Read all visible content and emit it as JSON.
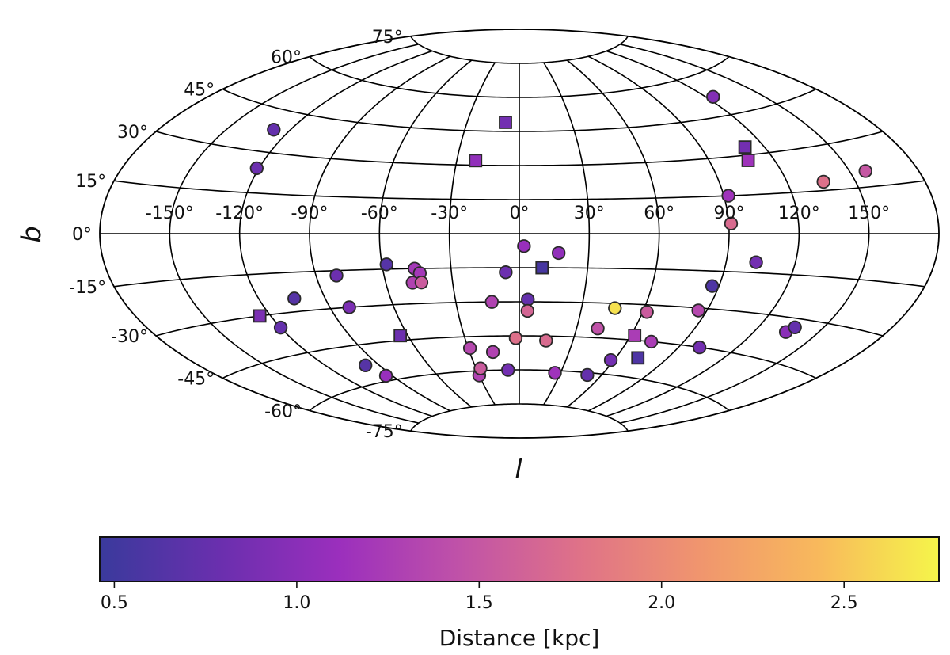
{
  "chart_data": {
    "type": "scatter",
    "projection": "aitoff",
    "xlabel": "l",
    "ylabel": "b",
    "lon_ticks": [
      -150,
      -120,
      -90,
      -60,
      -30,
      0,
      30,
      60,
      90,
      120,
      150
    ],
    "lon_tick_labels": [
      "-150°",
      "-120°",
      "-90°",
      "-60°",
      "-30°",
      "0°",
      "30°",
      "60°",
      "90°",
      "120°",
      "150°"
    ],
    "lat_ticks": [
      -75,
      -60,
      -45,
      -30,
      -15,
      0,
      15,
      30,
      45,
      60,
      75
    ],
    "lat_tick_labels": [
      "-75°",
      "-60°",
      "-45°",
      "-30°",
      "-15°",
      "0°",
      "15°",
      "30°",
      "45°",
      "60°",
      "75°"
    ],
    "grid": true,
    "colormap": "plasma",
    "colormap_stops": [
      "#3a3a9c",
      "#6a2fae",
      "#9b2fbd",
      "#c052a8",
      "#df7288",
      "#f0956e",
      "#f8b95c",
      "#f5f54a"
    ],
    "colorbar": {
      "label": "Distance [kpc]",
      "range": [
        0.46,
        2.76
      ],
      "ticks": [
        0.5,
        1.0,
        1.5,
        2.0,
        2.5
      ],
      "tick_labels": [
        "0.5",
        "1.0",
        "1.5",
        "2.0",
        "2.5"
      ],
      "orientation": "horizontal",
      "placement": "bottom"
    },
    "series": [
      {
        "marker": "circle",
        "points": [
          {
            "l": -128,
            "b": 38,
            "d": 0.75
          },
          {
            "l": -121,
            "b": 24,
            "d": 0.8
          },
          {
            "l": 124,
            "b": 52,
            "d": 0.95
          },
          {
            "l": 136,
            "b": 18,
            "d": 1.75
          },
          {
            "l": 92,
            "b": 15,
            "d": 1.15
          },
          {
            "l": 157,
            "b": 20,
            "d": 1.5
          },
          {
            "l": 91,
            "b": 4,
            "d": 1.7
          },
          {
            "l": 2,
            "b": -5.5,
            "d": 1.1
          },
          {
            "l": 17,
            "b": -8.5,
            "d": 1.05
          },
          {
            "l": 103,
            "b": -11,
            "d": 0.85
          },
          {
            "l": -6,
            "b": -17,
            "d": 0.8
          },
          {
            "l": -58,
            "b": -13,
            "d": 0.65
          },
          {
            "l": -81,
            "b": -17,
            "d": 0.8
          },
          {
            "l": -46,
            "b": -15,
            "d": 1.2
          },
          {
            "l": -44,
            "b": -17,
            "d": 1.2
          },
          {
            "l": -48,
            "b": -21,
            "d": 1.3
          },
          {
            "l": -44,
            "b": -21,
            "d": 1.55
          },
          {
            "l": 87,
            "b": -21,
            "d": 0.6
          },
          {
            "l": -120,
            "b": -35,
            "d": 0.75
          },
          {
            "l": -104,
            "b": -25,
            "d": 0.65
          },
          {
            "l": -81,
            "b": -30,
            "d": 0.9
          },
          {
            "l": -13,
            "b": -30,
            "d": 1.3
          },
          {
            "l": 4,
            "b": -29,
            "d": 0.75
          },
          {
            "l": 4,
            "b": -34,
            "d": 1.65
          },
          {
            "l": 46,
            "b": -32,
            "d": 2.65
          },
          {
            "l": 62,
            "b": -33,
            "d": 1.55
          },
          {
            "l": 86,
            "b": -31,
            "d": 1.35
          },
          {
            "l": 135,
            "b": -35,
            "d": 1.0
          },
          {
            "l": 137,
            "b": -33,
            "d": 0.75
          },
          {
            "l": 41,
            "b": -41,
            "d": 1.45
          },
          {
            "l": 73,
            "b": -45,
            "d": 1.25
          },
          {
            "l": 101,
            "b": -45,
            "d": 0.85
          },
          {
            "l": -2,
            "b": -46,
            "d": 1.75
          },
          {
            "l": 15,
            "b": -47,
            "d": 1.7
          },
          {
            "l": -29,
            "b": -50,
            "d": 1.35
          },
          {
            "l": -16,
            "b": -52,
            "d": 1.3
          },
          {
            "l": -98,
            "b": -53,
            "d": 0.65
          },
          {
            "l": -94,
            "b": -58,
            "d": 1.1
          },
          {
            "l": -30,
            "b": -62,
            "d": 1.3
          },
          {
            "l": -27,
            "b": -59,
            "d": 1.55
          },
          {
            "l": -8,
            "b": -60,
            "d": 0.85
          },
          {
            "l": 26,
            "b": -61,
            "d": 1.15
          },
          {
            "l": 58,
            "b": -54,
            "d": 0.85
          },
          {
            "l": 50,
            "b": -61,
            "d": 0.75
          }
        ]
      },
      {
        "marker": "square",
        "points": [
          {
            "l": -8,
            "b": 49,
            "d": 0.85
          },
          {
            "l": -21,
            "b": 32,
            "d": 1.05
          },
          {
            "l": 111,
            "b": 33,
            "d": 0.85
          },
          {
            "l": 108,
            "b": 28,
            "d": 1.15
          },
          {
            "l": 10,
            "b": -15,
            "d": 0.55
          },
          {
            "l": -125,
            "b": -30,
            "d": 0.9
          },
          {
            "l": -64,
            "b": -43,
            "d": 0.8
          },
          {
            "l": 62,
            "b": -43,
            "d": 1.25
          },
          {
            "l": 73,
            "b": -52,
            "d": 0.6
          }
        ]
      }
    ]
  }
}
